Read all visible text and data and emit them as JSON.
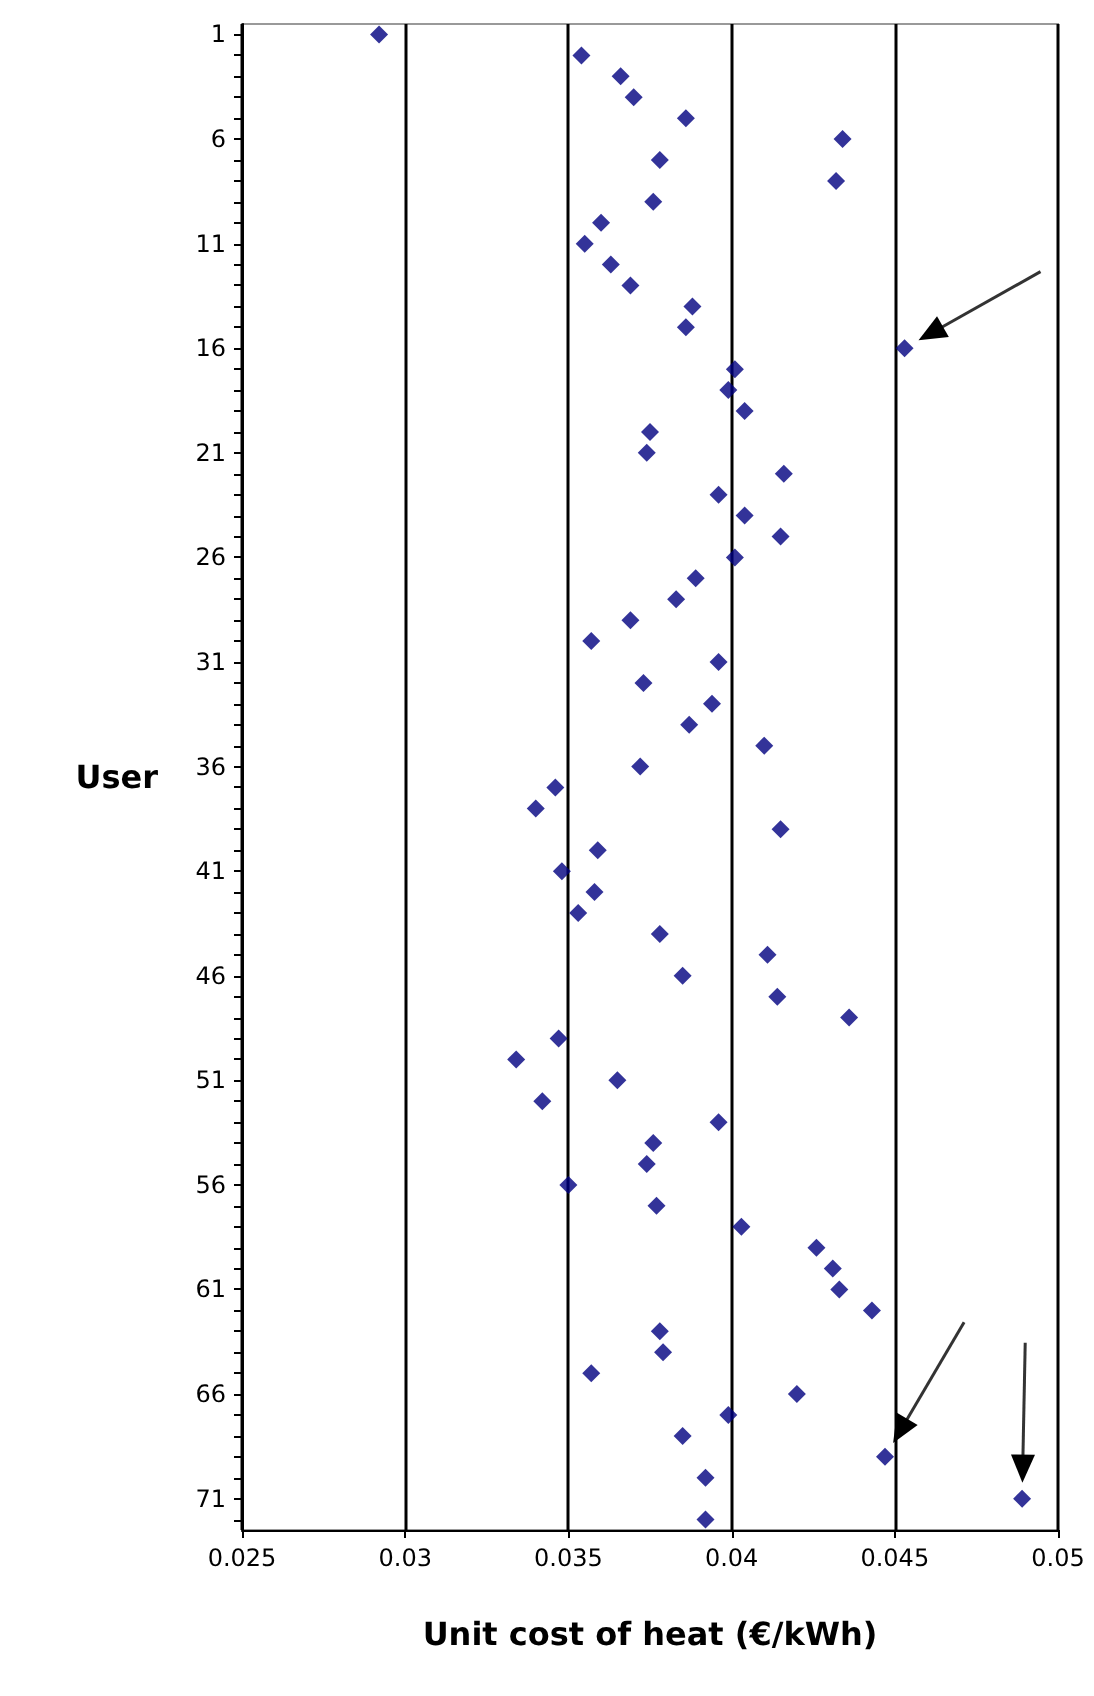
{
  "chart_data": {
    "type": "scatter",
    "xlabel": "Unit cost of heat (€/kWh)",
    "ylabel": "User",
    "x": [
      0.0292,
      0.0354,
      0.0366,
      0.037,
      0.0386,
      0.0434,
      0.0378,
      0.0432,
      0.0376,
      0.036,
      0.0355,
      0.0363,
      0.0369,
      0.0388,
      0.0386,
      0.0453,
      0.0401,
      0.0399,
      0.0404,
      0.0375,
      0.0374,
      0.0416,
      0.0396,
      0.0404,
      0.0415,
      0.0401,
      0.0389,
      0.0383,
      0.0369,
      0.0357,
      0.0396,
      0.0373,
      0.0394,
      0.0387,
      0.041,
      0.0372,
      0.0346,
      0.034,
      0.0415,
      0.0359,
      0.0348,
      0.0358,
      0.0353,
      0.0378,
      0.0411,
      0.0385,
      0.0414,
      0.0436,
      0.0347,
      0.0334,
      0.0365,
      0.0342,
      0.0396,
      0.0376,
      0.0374,
      0.035,
      0.0377,
      0.0403,
      0.0426,
      0.0431,
      0.0433,
      0.0443,
      0.0378,
      0.0379,
      0.0357,
      0.042,
      0.0399,
      0.0385,
      0.0447,
      0.0392,
      0.0489,
      0.0392
    ],
    "values": [
      1,
      2,
      3,
      4,
      5,
      6,
      7,
      8,
      9,
      10,
      11,
      12,
      13,
      14,
      15,
      16,
      17,
      18,
      19,
      20,
      21,
      22,
      23,
      24,
      25,
      26,
      27,
      28,
      29,
      30,
      31,
      32,
      33,
      34,
      35,
      36,
      37,
      38,
      39,
      40,
      41,
      42,
      43,
      44,
      45,
      46,
      47,
      48,
      49,
      50,
      51,
      52,
      53,
      54,
      55,
      56,
      57,
      58,
      59,
      60,
      61,
      62,
      63,
      64,
      65,
      66,
      67,
      68,
      69,
      70,
      71,
      72
    ],
    "color": "#000080",
    "marker": "diamond",
    "xlim": [
      0.025,
      0.05
    ],
    "xticks": [
      0.025,
      0.03,
      0.035,
      0.04,
      0.045,
      0.05
    ],
    "ylim": [
      72.5,
      0.5
    ],
    "yticks": [
      1,
      {
        "value": 2,
        "label": null
      },
      {
        "value": 3,
        "label": null
      },
      {
        "value": 4,
        "label": null
      },
      {
        "value": 5,
        "label": null
      },
      6,
      {
        "value": 7,
        "label": null
      },
      {
        "value": 8,
        "label": null
      },
      {
        "value": 9,
        "label": null
      },
      {
        "value": 10,
        "label": null
      },
      11,
      {
        "value": 12,
        "label": null
      },
      {
        "value": 13,
        "label": null
      },
      {
        "value": 14,
        "label": null
      },
      {
        "value": 15,
        "label": null
      },
      16,
      {
        "value": 17,
        "label": null
      },
      {
        "value": 18,
        "label": null
      },
      {
        "value": 19,
        "label": null
      },
      {
        "value": 20,
        "label": null
      },
      21,
      {
        "value": 22,
        "label": null
      },
      {
        "value": 23,
        "label": null
      },
      {
        "value": 24,
        "label": null
      },
      {
        "value": 25,
        "label": null
      },
      26,
      {
        "value": 27,
        "label": null
      },
      {
        "value": 28,
        "label": null
      },
      {
        "value": 29,
        "label": null
      },
      {
        "value": 30,
        "label": null
      },
      31,
      {
        "value": 32,
        "label": null
      },
      {
        "value": 33,
        "label": null
      },
      {
        "value": 34,
        "label": null
      },
      {
        "value": 35,
        "label": null
      },
      36,
      {
        "value": 37,
        "label": null
      },
      {
        "value": 38,
        "label": null
      },
      {
        "value": 39,
        "label": null
      },
      {
        "value": 40,
        "label": null
      },
      41,
      {
        "value": 42,
        "label": null
      },
      {
        "value": 43,
        "label": null
      },
      {
        "value": 44,
        "label": null
      },
      {
        "value": 45,
        "label": null
      },
      46,
      {
        "value": 47,
        "label": null
      },
      {
        "value": 48,
        "label": null
      },
      {
        "value": 49,
        "label": null
      },
      {
        "value": 50,
        "label": null
      },
      51,
      {
        "value": 52,
        "label": null
      },
      {
        "value": 53,
        "label": null
      },
      {
        "value": 54,
        "label": null
      },
      {
        "value": 55,
        "label": null
      },
      56,
      {
        "value": 57,
        "label": null
      },
      {
        "value": 58,
        "label": null
      },
      {
        "value": 59,
        "label": null
      },
      {
        "value": 60,
        "label": null
      },
      61,
      {
        "value": 62,
        "label": null
      },
      {
        "value": 63,
        "label": null
      },
      {
        "value": 64,
        "label": null
      },
      {
        "value": 65,
        "label": null
      },
      66,
      {
        "value": 67,
        "label": null
      },
      {
        "value": 68,
        "label": null
      },
      {
        "value": 69,
        "label": null
      },
      {
        "value": 70,
        "label": null
      },
      71,
      {
        "value": 72,
        "label": null
      }
    ],
    "grid": "x"
  }
}
